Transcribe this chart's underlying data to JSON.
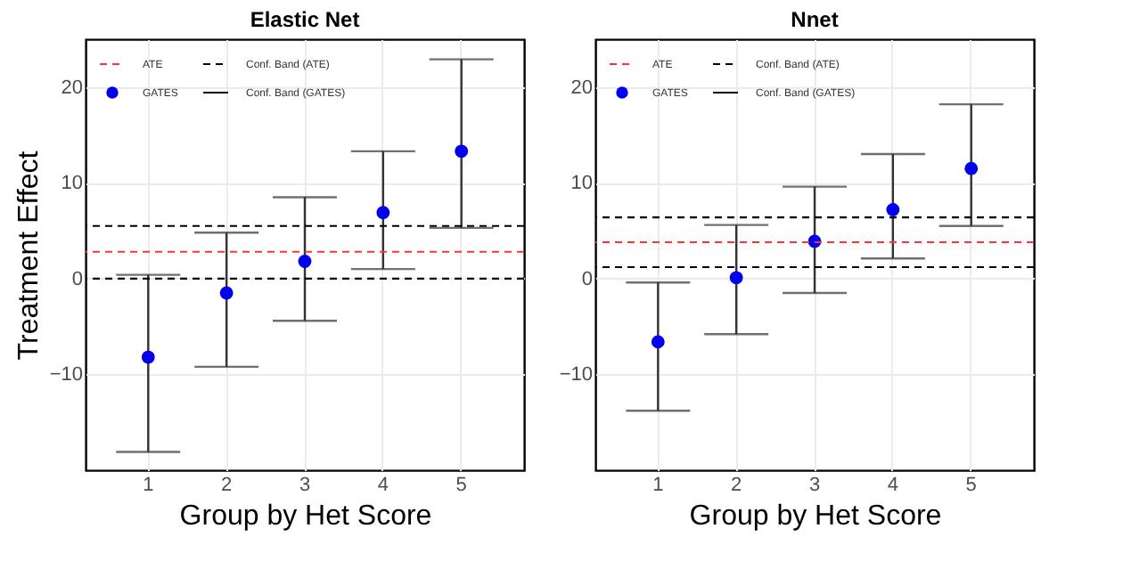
{
  "chart_data": [
    {
      "type": "scatter",
      "title": "Elastic Net",
      "xlabel": "Group by Het Score",
      "ylabel": "Treatment Effect",
      "categories": [
        "1",
        "2",
        "3",
        "4",
        "5"
      ],
      "series": [
        {
          "name": "GATES",
          "color": "#0000ee",
          "values": [
            -8.2,
            -1.5,
            1.8,
            6.9,
            13.3
          ],
          "errors": [
            [
              -18.1,
              0.4
            ],
            [
              -9.2,
              4.8
            ],
            [
              -4.4,
              8.5
            ],
            [
              1.0,
              13.3
            ],
            [
              5.3,
              22.9
            ]
          ]
        }
      ],
      "ylim": [
        -20,
        25
      ],
      "yticks": [
        -10,
        0,
        10,
        20
      ],
      "grid": true,
      "legend": "top left",
      "marker": "circle",
      "ref_lines": [
        {
          "axis": "y",
          "value": 2.8,
          "label": "ATE",
          "color": "#ff3333",
          "line_style": "dashed"
        },
        {
          "axis": "y",
          "value": 0.0,
          "label": "Conf. Band (ATE)",
          "color": "#000000",
          "line_style": "dashed"
        },
        {
          "axis": "y",
          "value": 5.5,
          "label": null,
          "color": "#000000",
          "line_style": "dashed"
        }
      ],
      "annotations": [
        "Conf. Band (GATES)"
      ]
    },
    {
      "type": "scatter",
      "title": "Nnet",
      "xlabel": "Group by Het Score",
      "categories": [
        "1",
        "2",
        "3",
        "4",
        "5"
      ],
      "series": [
        {
          "name": "GATES",
          "color": "#0000ee",
          "values": [
            -6.6,
            0.1,
            3.9,
            7.2,
            11.5
          ],
          "errors": [
            [
              -13.8,
              -0.4
            ],
            [
              -5.8,
              5.6
            ],
            [
              -1.5,
              9.6
            ],
            [
              2.1,
              13.0
            ],
            [
              5.5,
              18.2
            ]
          ]
        }
      ],
      "ylim": [
        -20,
        25
      ],
      "yticks": [
        -10,
        0,
        10,
        20
      ],
      "grid": true,
      "legend": "top left",
      "marker": "circle",
      "ref_lines": [
        {
          "axis": "y",
          "value": 3.8,
          "label": "ATE",
          "color": "#ff3333",
          "line_style": "dashed"
        },
        {
          "axis": "y",
          "value": 1.2,
          "label": "Conf. Band (ATE)",
          "color": "#000000",
          "line_style": "dashed"
        },
        {
          "axis": "y",
          "value": 6.4,
          "label": null,
          "color": "#000000",
          "line_style": "dashed"
        }
      ],
      "annotations": [
        "Conf. Band (GATES)"
      ]
    }
  ]
}
